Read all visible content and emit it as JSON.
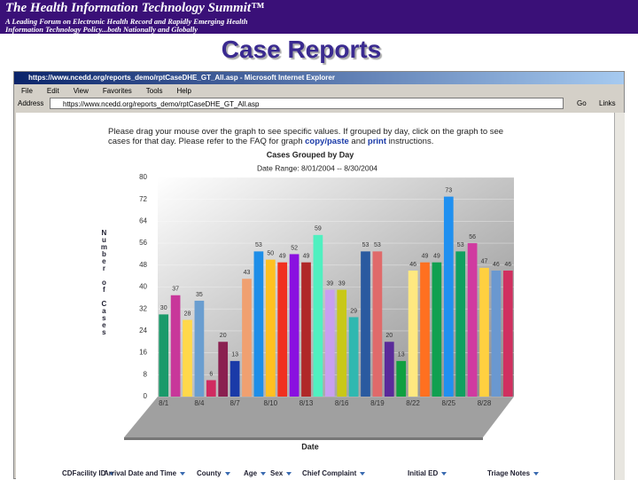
{
  "header": {
    "title": "The Health Information Technology Summit™",
    "tagline1": "A Leading Forum on Electronic Health Record and Rapidly Emerging Health",
    "tagline2": "Information Technology Policy...both Nationally and Globally"
  },
  "slide_title": "Case Reports",
  "browser": {
    "window_title": "https://www.ncedd.org/reports_demo/rptCaseDHE_GT_All.asp - Microsoft Internet Explorer",
    "menu": [
      "File",
      "Edit",
      "View",
      "Favorites",
      "Tools",
      "Help"
    ],
    "address_label": "Address",
    "url": "https://www.ncedd.org/reports_demo/rptCaseDHE_GT_All.asp",
    "go": "Go",
    "links": "Links"
  },
  "instructions": {
    "line1": "Please drag your mouse over the graph to see specific values. If grouped by day, click on the graph to see",
    "line2": "cases for that day. Please refer to the FAQ for graph ",
    "link1": "copy/paste",
    "and": " and ",
    "link2": "print",
    "end": " instructions."
  },
  "chart_data": {
    "type": "bar",
    "title": "Cases Grouped by Day",
    "subtitle": "Date Range: 8/01/2004 -- 8/30/2004",
    "y_label": "Number of Cases",
    "x_label": "Date",
    "categories": [
      "8/1",
      null,
      null,
      "8/4",
      null,
      null,
      "8/7",
      null,
      null,
      "8/10",
      null,
      null,
      "8/13",
      null,
      null,
      "8/16",
      null,
      null,
      "8/19",
      null,
      null,
      "8/22",
      null,
      null,
      "8/25",
      null,
      null,
      "8/28",
      null,
      null
    ],
    "values": [
      30,
      37,
      28,
      35,
      6,
      20,
      13,
      43,
      53,
      50,
      49,
      52,
      49,
      59,
      39,
      39,
      29,
      53,
      53,
      20,
      13,
      46,
      49,
      49,
      73,
      53,
      56,
      47,
      46,
      46
    ],
    "colors": [
      "#1a9a6a",
      "#c8379a",
      "#ffd84a",
      "#6a9ed0",
      "#d02a60",
      "#8a2050",
      "#1a3aa8",
      "#f0a070",
      "#1e8ee8",
      "#ffc020",
      "#f03020",
      "#8a10e0",
      "#b02828",
      "#50f0c0",
      "#c8a0f0",
      "#c8c818",
      "#30b8b0",
      "#2a5aa0",
      "#e06a6a",
      "#5a2a9a",
      "#10a040",
      "#ffe880",
      "#ff7020",
      "#10a050",
      "#2090f0",
      "#10a060",
      "#d03aa0",
      "#ffd040",
      "#6a98d0",
      "#d03060"
    ],
    "ylim": [
      0,
      80
    ],
    "yticks": [
      0,
      8,
      16,
      24,
      32,
      40,
      48,
      56,
      64,
      72,
      80
    ],
    "grid": true
  },
  "table_header": [
    "CDFacility ID",
    "Arrival Date and Time",
    "County",
    "Age",
    "Sex",
    "Chief Complaint",
    "Initial ED",
    "Triage Notes"
  ]
}
